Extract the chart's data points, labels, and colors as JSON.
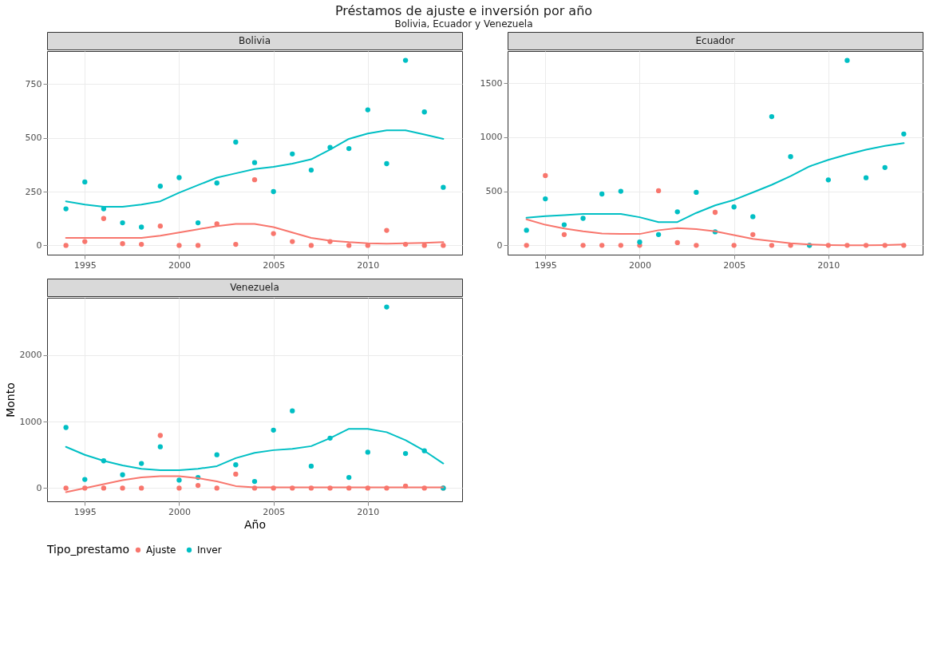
{
  "chart_data": [
    {
      "type": "other",
      "title": "Préstamos de ajuste e inversión por año",
      "subtitle": "Bolivia, Ecuador y Venezuela"
    },
    {
      "type": "scatter",
      "title": "Bolivia",
      "legend_title": "Tipo_prestamo",
      "legend": "bottom",
      "x": [
        1994,
        1995,
        1996,
        1997,
        1998,
        1999,
        2000,
        2001,
        2002,
        2003,
        2004,
        2005,
        2006,
        2007,
        2008,
        2009,
        2010,
        2011,
        2012,
        2013,
        2014
      ],
      "xlim": [
        1993,
        2015
      ],
      "xticks": [
        1995,
        2000,
        2005,
        2010
      ],
      "ylim": [
        -43,
        903
      ],
      "yticks": [
        0,
        250,
        500,
        750
      ],
      "grid": true,
      "series": [
        {
          "type": "scatter",
          "name": "Ajuste",
          "color": "#f8766d",
          "marker": "circle",
          "values": [
            0,
            18,
            125,
            8,
            5,
            90,
            0,
            0,
            100,
            5,
            305,
            55,
            18,
            0,
            18,
            0,
            0,
            70,
            5,
            0,
            0
          ]
        },
        {
          "type": "scatter",
          "name": "Inver",
          "color": "#00bfc4",
          "marker": "circle",
          "values": [
            170,
            295,
            170,
            105,
            85,
            275,
            315,
            105,
            290,
            480,
            385,
            250,
            425,
            350,
            455,
            450,
            630,
            380,
            860,
            620,
            270
          ]
        },
        {
          "type": "line",
          "color": "#f8766d",
          "marker": "none",
          "values": [
            35,
            35,
            35,
            35,
            35,
            45,
            60,
            75,
            90,
            100,
            100,
            85,
            60,
            35,
            22,
            15,
            10,
            8,
            10,
            12,
            15
          ]
        },
        {
          "type": "line",
          "color": "#00bfc4",
          "marker": "none",
          "values": [
            205,
            190,
            180,
            180,
            190,
            205,
            245,
            280,
            315,
            335,
            355,
            365,
            380,
            400,
            445,
            495,
            520,
            535,
            535,
            515,
            495
          ]
        }
      ]
    },
    {
      "type": "scatter",
      "title": "Ecuador",
      "x": [
        1994,
        1995,
        1996,
        1997,
        1998,
        1999,
        2000,
        2001,
        2002,
        2003,
        2004,
        2005,
        2006,
        2007,
        2008,
        2009,
        2010,
        2011,
        2012,
        2013,
        2014
      ],
      "xlim": [
        1993,
        2015
      ],
      "xticks": [
        1995,
        2000,
        2005,
        2010
      ],
      "ylim": [
        -86,
        1796
      ],
      "yticks": [
        0,
        500,
        {
          "value": 1000,
          "label": "1000"
        },
        {
          "value": 1500,
          "label": "1500"
        }
      ],
      "grid": true,
      "series": [
        {
          "type": "scatter",
          "name": "Ajuste",
          "color": "#f8766d",
          "marker": "circle",
          "values": [
            0,
            645,
            100,
            0,
            0,
            0,
            0,
            505,
            25,
            0,
            305,
            0,
            100,
            0,
            0,
            0,
            0,
            0,
            0,
            0,
            0
          ]
        },
        {
          "type": "scatter",
          "name": "Inver",
          "color": "#00bfc4",
          "marker": "circle",
          "values": [
            140,
            430,
            190,
            250,
            475,
            500,
            30,
            100,
            310,
            490,
            125,
            355,
            265,
            1190,
            820,
            0,
            605,
            1710,
            625,
            720,
            1030
          ]
        },
        {
          "type": "line",
          "color": "#f8766d",
          "marker": "none",
          "values": [
            240,
            190,
            155,
            130,
            110,
            105,
            105,
            140,
            160,
            150,
            130,
            95,
            60,
            40,
            20,
            8,
            3,
            0,
            0,
            3,
            8
          ]
        },
        {
          "type": "line",
          "color": "#00bfc4",
          "marker": "none",
          "values": [
            255,
            270,
            280,
            290,
            290,
            290,
            260,
            215,
            215,
            300,
            370,
            420,
            490,
            560,
            640,
            730,
            790,
            840,
            885,
            920,
            945
          ]
        }
      ]
    },
    {
      "type": "scatter",
      "title": "Venezuela",
      "xlabel": "Año",
      "ylabel": "Monto",
      "x": [
        1994,
        1995,
        1996,
        1997,
        1998,
        1999,
        2000,
        2001,
        2002,
        2003,
        2004,
        2005,
        2006,
        2007,
        2008,
        2009,
        2010,
        2011,
        2012,
        2013,
        2014
      ],
      "xlim": [
        1993,
        2015
      ],
      "xticks": [
        1995,
        2000,
        2005,
        2010
      ],
      "ylim": [
        -199,
        2859
      ],
      "yticks": [
        0,
        {
          "value": 1000,
          "label": "1000"
        },
        {
          "value": 2000,
          "label": "2000"
        }
      ],
      "grid": true,
      "series": [
        {
          "type": "scatter",
          "name": "Ajuste",
          "color": "#f8766d",
          "marker": "circle",
          "values": [
            0,
            0,
            0,
            0,
            0,
            790,
            0,
            40,
            0,
            210,
            0,
            0,
            0,
            0,
            0,
            0,
            0,
            0,
            30,
            0,
            0
          ]
        },
        {
          "type": "scatter",
          "name": "Inver",
          "color": "#00bfc4",
          "marker": "circle",
          "values": [
            910,
            130,
            410,
            200,
            370,
            620,
            120,
            160,
            500,
            350,
            100,
            870,
            1160,
            330,
            750,
            160,
            540,
            2720,
            520,
            560,
            0
          ]
        },
        {
          "type": "line",
          "color": "#f8766d",
          "marker": "none",
          "values": [
            -60,
            0,
            60,
            120,
            160,
            180,
            180,
            150,
            100,
            30,
            10,
            10,
            10,
            10,
            10,
            10,
            10,
            10,
            10,
            10,
            10
          ]
        },
        {
          "type": "line",
          "color": "#00bfc4",
          "marker": "none",
          "values": [
            620,
            500,
            410,
            340,
            290,
            270,
            270,
            290,
            330,
            450,
            530,
            570,
            590,
            630,
            750,
            890,
            890,
            840,
            720,
            560,
            370
          ]
        }
      ]
    }
  ]
}
